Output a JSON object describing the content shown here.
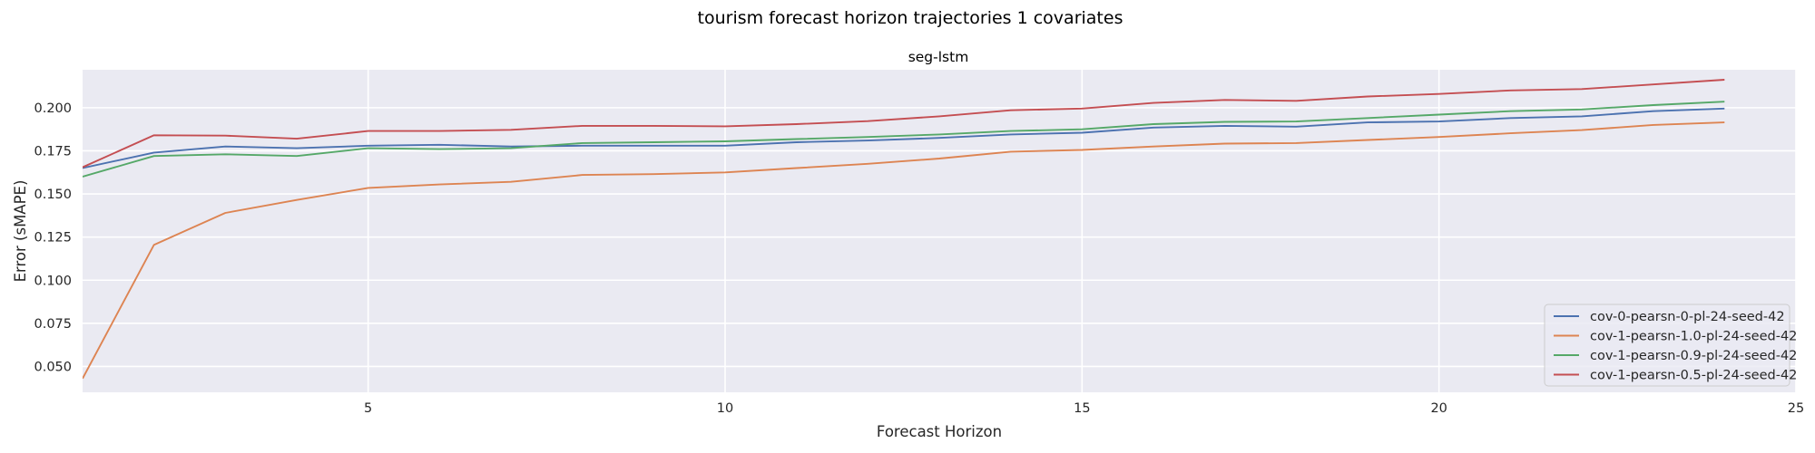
{
  "chart_data": {
    "type": "line",
    "suptitle": "tourism forecast horizon trajectories 1 covariates",
    "title": "seg-lstm",
    "xlabel": "Forecast Horizon",
    "ylabel": "Error (sMAPE)",
    "xlim": [
      1,
      25
    ],
    "ylim": [
      0.035,
      0.222
    ],
    "xticks": [
      5,
      10,
      15,
      20,
      25
    ],
    "yticks": [
      0.05,
      0.075,
      0.1,
      0.125,
      0.15,
      0.175,
      0.2
    ],
    "ytick_labels": [
      "0.050",
      "0.075",
      "0.100",
      "0.125",
      "0.150",
      "0.175",
      "0.200"
    ],
    "grid": true,
    "legend_position": "lower-right",
    "x": [
      1,
      2,
      3,
      4,
      5,
      6,
      7,
      8,
      9,
      10,
      11,
      12,
      13,
      14,
      15,
      16,
      17,
      18,
      19,
      20,
      21,
      22,
      23,
      24
    ],
    "series": [
      {
        "name": "cov-0-pearsn-0-pl-24-seed-42",
        "color": "#4c72b0",
        "values": [
          0.165,
          0.174,
          0.1775,
          0.1765,
          0.178,
          0.1785,
          0.1775,
          0.178,
          0.178,
          0.178,
          0.18,
          0.181,
          0.1825,
          0.1845,
          0.1855,
          0.1885,
          0.1895,
          0.189,
          0.1915,
          0.192,
          0.194,
          0.195,
          0.198,
          0.1995
        ]
      },
      {
        "name": "cov-1-pearsn-1.0-pl-24-seed-42",
        "color": "#dd8452",
        "values": [
          0.043,
          0.1205,
          0.139,
          0.1465,
          0.1535,
          0.1555,
          0.157,
          0.161,
          0.1615,
          0.1625,
          0.165,
          0.1675,
          0.1705,
          0.1745,
          0.1755,
          0.1775,
          0.1792,
          0.1795,
          0.1813,
          0.183,
          0.1852,
          0.187,
          0.19,
          0.1915
        ]
      },
      {
        "name": "cov-1-pearsn-0.9-pl-24-seed-42",
        "color": "#55a868",
        "values": [
          0.16,
          0.172,
          0.173,
          0.172,
          0.1765,
          0.176,
          0.1765,
          0.1795,
          0.18,
          0.1805,
          0.1818,
          0.183,
          0.1845,
          0.1865,
          0.1875,
          0.1905,
          0.1918,
          0.192,
          0.194,
          0.196,
          0.198,
          0.199,
          0.2015,
          0.2035
        ]
      },
      {
        "name": "cov-1-pearsn-0.5-pl-24-seed-42",
        "color": "#c44e52",
        "values": [
          0.1655,
          0.184,
          0.1838,
          0.182,
          0.1865,
          0.1865,
          0.1872,
          0.1895,
          0.1895,
          0.1892,
          0.1905,
          0.1922,
          0.195,
          0.1985,
          0.1995,
          0.2028,
          0.2045,
          0.204,
          0.2065,
          0.208,
          0.21,
          0.2108,
          0.2135,
          0.2162
        ]
      }
    ]
  }
}
